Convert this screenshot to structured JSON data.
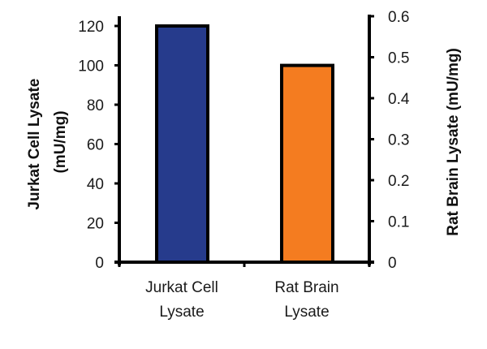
{
  "chart_data": {
    "type": "bar",
    "title": "",
    "categories": [
      "Jurkat Cell Lysate",
      "Rat Brain Lysate"
    ],
    "category_labels": [
      [
        "Jurkat Cell",
        "Lysate"
      ],
      [
        "Rat Brain",
        "Lysate"
      ]
    ],
    "series": [
      {
        "name": "Jurkat Cell Lysate",
        "axis": "left",
        "values": [
          120,
          null
        ],
        "color": "#263b8c"
      },
      {
        "name": "Rat Brain Lysate",
        "axis": "right",
        "values": [
          null,
          0.48
        ],
        "color": "#f47c20"
      }
    ],
    "values": [
      120,
      0.48
    ],
    "xlabel": "",
    "ylabel": "Jurkat Cell Lysate (mU/mg)",
    "ylabel_lines": [
      "Jurkat Cell Lysate",
      "(mU/mg)"
    ],
    "ylim": [
      0,
      120
    ],
    "yticks": [
      0,
      20,
      40,
      60,
      80,
      100,
      120
    ],
    "y2label": "Rat Brain Lysate (mU/mg)",
    "y2lim": [
      0,
      0.6
    ],
    "y2ticks": [
      "0",
      "0.1",
      "0.2",
      "0.3",
      "0.4",
      "0.5",
      "0.6"
    ],
    "grid": false,
    "legend": null
  }
}
